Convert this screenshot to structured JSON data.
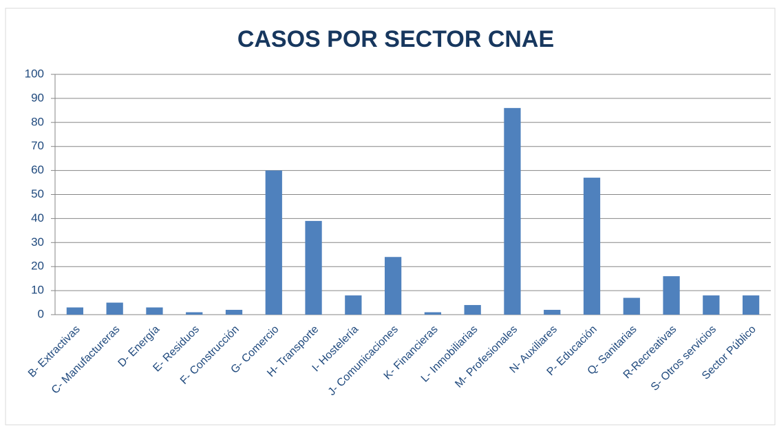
{
  "chart_data": {
    "type": "bar",
    "title": "CASOS POR SECTOR CNAE",
    "categories": [
      "B- Extractivas",
      "C- Manufactureras",
      "D- Energía",
      "E- Residuos",
      "F- Construcción",
      "G- Comercio",
      "H- Transporte",
      "I- Hostelería",
      "J- Comunicaciones",
      "K- Financieras",
      "L- Inmobiliarias",
      "M- Profesionales",
      "N- Auxiliares",
      "P- Educación",
      "Q- Sanitarias",
      "R-Recreativas",
      "S- Otros servicios",
      "Sector Público"
    ],
    "values": [
      3,
      5,
      3,
      1,
      2,
      60,
      39,
      8,
      24,
      1,
      4,
      86,
      2,
      57,
      7,
      16,
      8,
      8
    ],
    "color": "#4f81bd",
    "ylim": [
      0,
      100
    ],
    "yticks": [
      0,
      10,
      20,
      30,
      40,
      50,
      60,
      70,
      80,
      90,
      100
    ],
    "grid": true
  }
}
